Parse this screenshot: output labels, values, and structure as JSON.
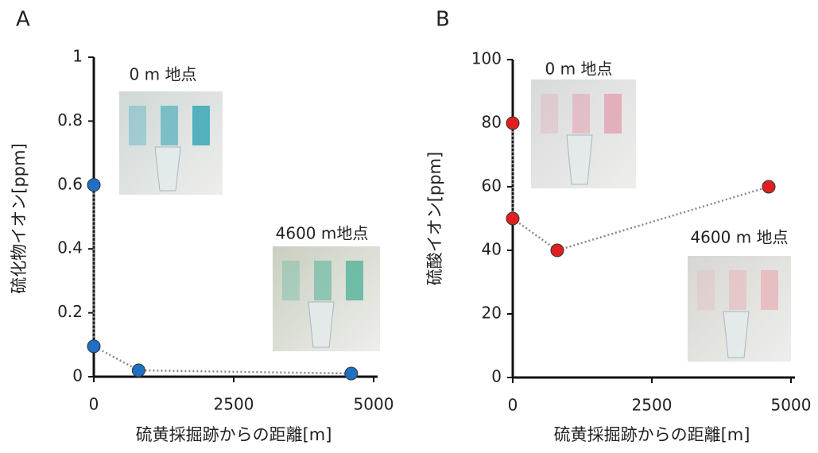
{
  "chart_data": [
    {
      "type": "line",
      "label": "A",
      "ylabel": "硫化物イオン[ppm]",
      "xlabel": "硫黄採掘跡からの距離[m]",
      "xlim": [
        0,
        5000
      ],
      "xticks": [
        0,
        2500,
        5000
      ],
      "ylim": [
        0,
        1
      ],
      "yticks": [
        0,
        0.2,
        0.4,
        0.6,
        0.8,
        1
      ],
      "series": [
        {
          "color": "#1f6fc5",
          "x": [
            0,
            0,
            800,
            4600
          ],
          "values": [
            0.6,
            0.095,
            0.02,
            0.01
          ]
        }
      ],
      "annotations": [
        "0 m 地点",
        "4600 m地点"
      ]
    },
    {
      "type": "line",
      "label": "B",
      "ylabel": "硫酸イオン[ppm]",
      "xlabel": "硫黄採掘跡からの距離[m]",
      "xlim": [
        0,
        5000
      ],
      "xticks": [
        0,
        2500,
        5000
      ],
      "ylim": [
        0,
        100
      ],
      "yticks": [
        0,
        20,
        40,
        60,
        80,
        100
      ],
      "series": [
        {
          "color": "#e02020",
          "x": [
            0,
            0,
            800,
            4600
          ],
          "values": [
            80,
            50,
            40,
            60
          ]
        }
      ],
      "annotations": [
        "0 m 地点",
        "4600 m 地点"
      ]
    }
  ]
}
